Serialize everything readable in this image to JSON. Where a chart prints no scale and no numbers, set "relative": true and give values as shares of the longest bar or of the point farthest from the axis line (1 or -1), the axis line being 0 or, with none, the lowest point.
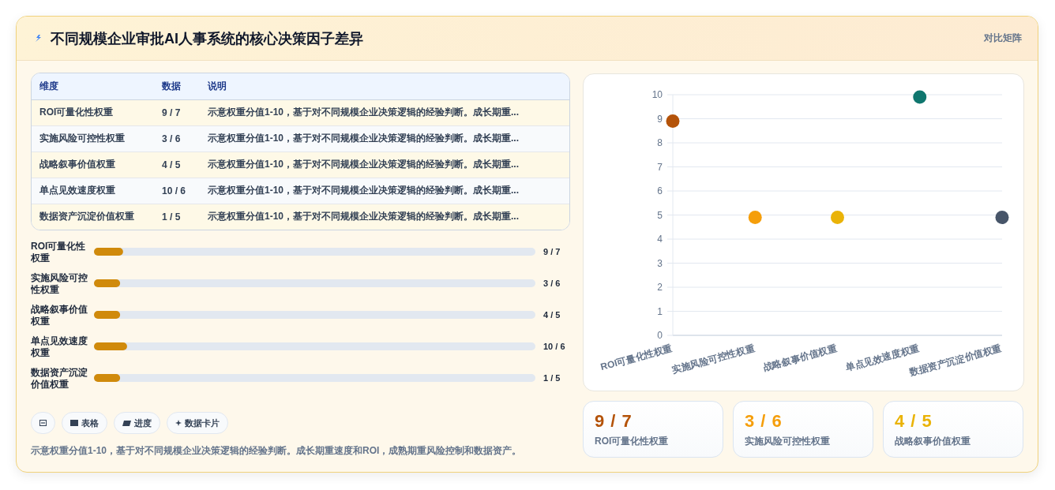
{
  "chart_data": [
    {
      "type": "other",
      "title": "不同规模企业审批AI人事系统的核心决策因子差异",
      "subtitle": "对比矩阵",
      "categories": [
        "维度",
        "数据",
        "说明"
      ],
      "cell_labels": [
        [
          "ROI可量化性权重",
          "9 / 7",
          "示意权重分值1-10，基于对不同规模企业决策逻辑的经验判断。成长期重..."
        ],
        [
          "实施风险可控性权重",
          "3 / 6",
          "示意权重分值1-10，基于对不同规模企业决策逻辑的经验判断。成长期重..."
        ],
        [
          "战略叙事价值权重",
          "4 / 5",
          "示意权重分值1-10，基于对不同规模企业决策逻辑的经验判断。成长期重..."
        ],
        [
          "单点见效速度权重",
          "10 / 6",
          "示意权重分值1-10，基于对不同规模企业决策逻辑的经验判断。成长期重..."
        ],
        [
          "数据资产沉淀价值权重",
          "1 / 5",
          "示意权重分值1-10，基于对不同规模企业决策逻辑的经验判断。成长期重..."
        ]
      ]
    },
    {
      "type": "bar",
      "orientation": "horizontal",
      "relative": true,
      "categories": [
        "ROI可量化性权重",
        "实施风险可控性权重",
        "战略叙事价值权重",
        "单点见效速度权重",
        "数据资产沉淀价值权重"
      ],
      "values": [
        0.88,
        0.79,
        0.79,
        1,
        0.79
      ],
      "color": "#d08a0b",
      "annotations": [
        "9 / 7",
        "3 / 6",
        "4 / 5",
        "10 / 6",
        "1 / 5",
        "表格",
        "进度",
        "数据卡片",
        "示意权重分值1-10，基于对不同规模企业决策逻辑的经验判断。成长期重速度和ROI，成熟期重风险控制和数据资产。"
      ]
    },
    {
      "type": "scatter",
      "categories": [
        "ROI可量化性权重",
        "实施风险可控性权重",
        "战略叙事价值权重",
        "单点见效速度权重",
        "数据资产沉淀价值权重"
      ],
      "values": [
        8.9,
        4.9,
        4.9,
        9.9,
        4.9
      ],
      "colors": [
        "#b45309",
        "#f59e0b",
        "#eab308",
        "#0f766e",
        "#475569"
      ],
      "ylim": [
        0,
        10
      ],
      "yticks": [
        0,
        1,
        2,
        3,
        4,
        5,
        6,
        7,
        8,
        9,
        10
      ],
      "grid": "y",
      "marker": "circle"
    },
    {
      "type": "other",
      "categories": [
        "ROI可量化性权重",
        "实施风险可控性权重",
        "战略叙事价值权重"
      ],
      "value_labels": [
        "9 / 7",
        "3 / 6",
        "4 / 5"
      ]
    }
  ]
}
